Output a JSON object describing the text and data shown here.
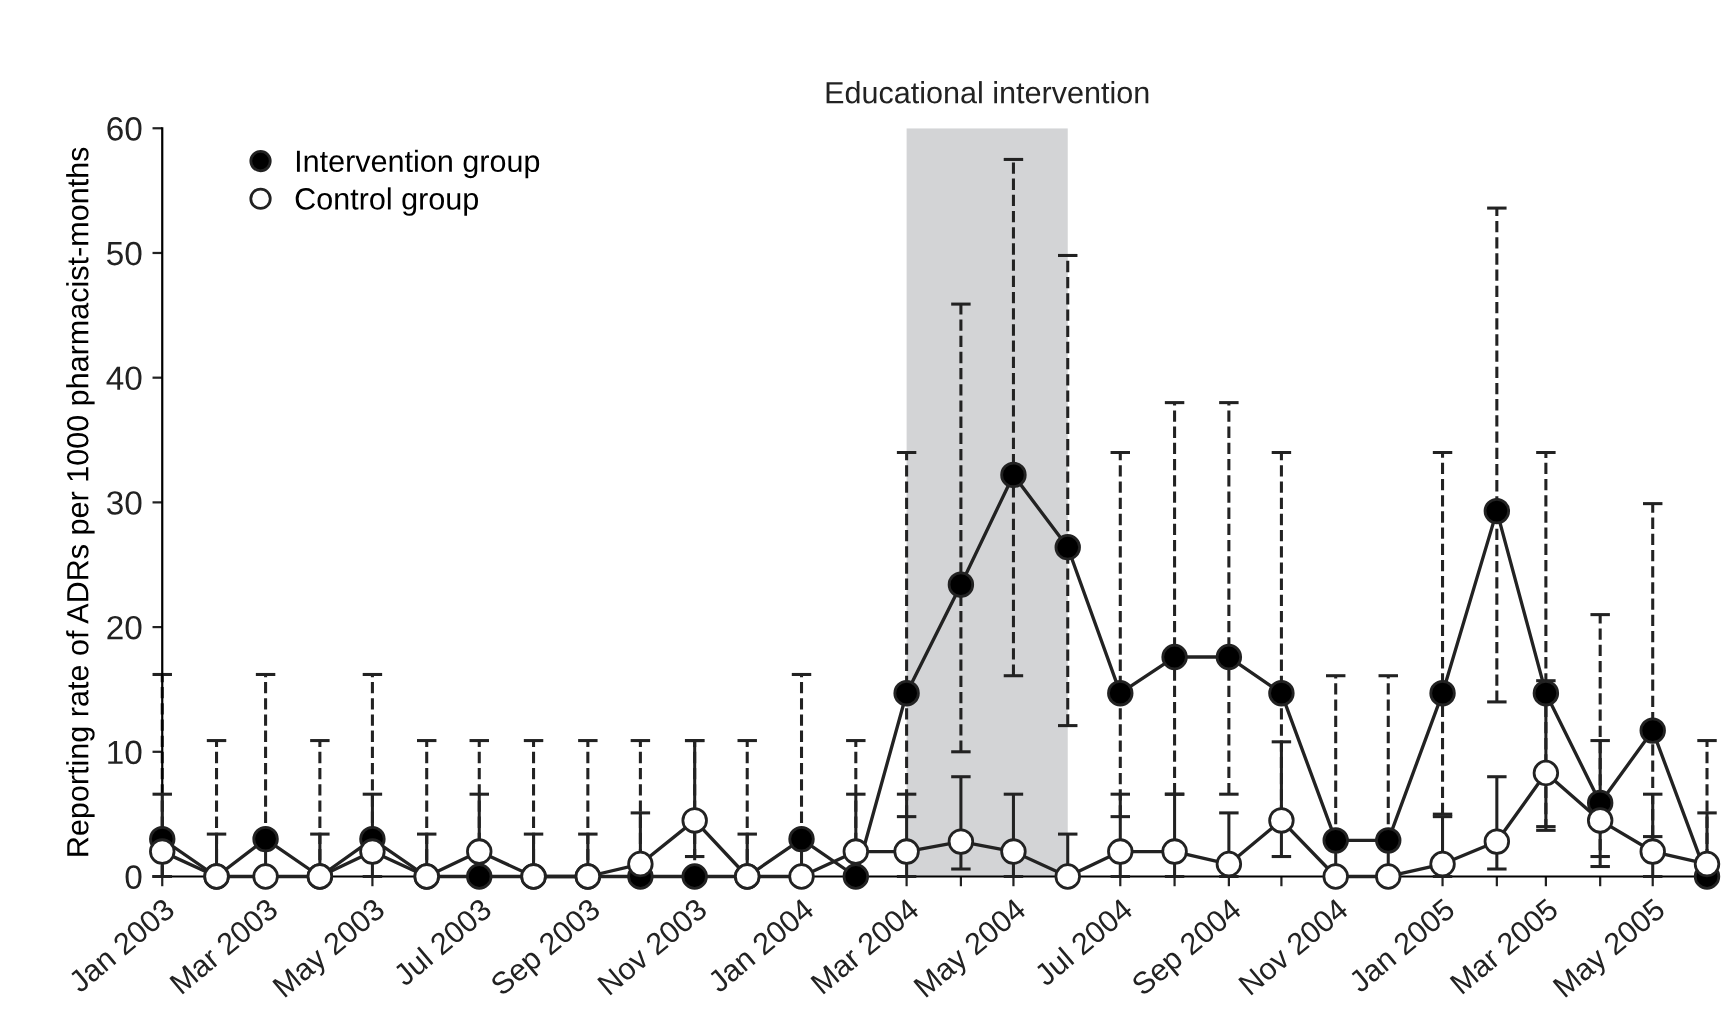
{
  "chart_data": {
    "type": "line",
    "ylabel": "Reporting rate of ADRs per 1000 pharmacist-months",
    "x": [
      "2003-01",
      "2003-02",
      "2003-03",
      "2003-04",
      "2003-05",
      "2003-06",
      "2003-07",
      "2003-08",
      "2003-09",
      "2003-10",
      "2003-11",
      "2003-12",
      "2004-01",
      "2004-02",
      "2004-03",
      "2004-04",
      "2004-05",
      "2004-06",
      "2004-07",
      "2004-08",
      "2004-09",
      "2004-10",
      "2004-11",
      "2004-12",
      "2005-01",
      "2005-02",
      "2005-03",
      "2005-04",
      "2005-05",
      "2005-06"
    ],
    "xlim": [
      "2003-01",
      "2005-06"
    ],
    "xticks": [
      {
        "value": "2003-01",
        "label": "Jan 2003"
      },
      {
        "value": "2003-02",
        "label": null
      },
      {
        "value": "2003-03",
        "label": "Mar 2003"
      },
      {
        "value": "2003-04",
        "label": null
      },
      {
        "value": "2003-05",
        "label": "May 2003"
      },
      {
        "value": "2003-06",
        "label": null
      },
      {
        "value": "2003-07",
        "label": "Jul 2003"
      },
      {
        "value": "2003-08",
        "label": null
      },
      {
        "value": "2003-09",
        "label": "Sep 2003"
      },
      {
        "value": "2003-10",
        "label": null
      },
      {
        "value": "2003-11",
        "label": "Nov 2003"
      },
      {
        "value": "2003-12",
        "label": null
      },
      {
        "value": "2004-01",
        "label": "Jan 2004"
      },
      {
        "value": "2004-02",
        "label": null
      },
      {
        "value": "2004-03",
        "label": "Mar 2004"
      },
      {
        "value": "2004-04",
        "label": null
      },
      {
        "value": "2004-05",
        "label": "May 2004"
      },
      {
        "value": "2004-06",
        "label": null
      },
      {
        "value": "2004-07",
        "label": "Jul 2004"
      },
      {
        "value": "2004-08",
        "label": null
      },
      {
        "value": "2004-09",
        "label": "Sep 2004"
      },
      {
        "value": "2004-10",
        "label": null
      },
      {
        "value": "2004-11",
        "label": "Nov 2004"
      },
      {
        "value": "2004-12",
        "label": null
      },
      {
        "value": "2005-01",
        "label": "Jan 2005"
      },
      {
        "value": "2005-02",
        "label": null
      },
      {
        "value": "2005-03",
        "label": "Mar 2005"
      },
      {
        "value": "2005-04",
        "label": null
      },
      {
        "value": "2005-05",
        "label": "May 2005"
      },
      {
        "value": "2005-06",
        "label": null
      }
    ],
    "series": [
      {
        "name": "Intervention group",
        "color": "#000000",
        "values": [
          3,
          0,
          3,
          0,
          3,
          0,
          0,
          0,
          0,
          0,
          0,
          0,
          3,
          0,
          14.7,
          23.4,
          32.2,
          26.4,
          14.7,
          17.6,
          17.6,
          14.7,
          2.9,
          2.9,
          14.7,
          29.3,
          14.7,
          5.9,
          11.7,
          0
        ],
        "errors": [
          [
            0,
            16.2
          ],
          [
            0,
            10.9
          ],
          [
            3,
            16.2
          ],
          [
            0,
            10.9
          ],
          [
            3,
            16.2
          ],
          [
            0,
            10.9
          ],
          [
            0,
            10.9
          ],
          [
            0,
            10.9
          ],
          [
            0,
            10.9
          ],
          [
            0,
            10.9
          ],
          [
            0,
            10.9
          ],
          [
            0,
            10.9
          ],
          [
            3,
            16.2
          ],
          [
            0,
            10.9
          ],
          [
            4.8,
            34
          ],
          [
            10,
            45.9
          ],
          [
            16.1,
            57.5
          ],
          [
            12.1,
            49.8
          ],
          [
            4.8,
            34
          ],
          [
            6.6,
            38
          ],
          [
            6.6,
            38
          ],
          [
            4.8,
            34
          ],
          [
            2.9,
            16.1
          ],
          [
            2.9,
            16.1
          ],
          [
            5,
            34
          ],
          [
            14,
            53.6
          ],
          [
            3.7,
            34
          ],
          [
            0.8,
            21
          ],
          [
            3.2,
            29.9
          ],
          [
            0,
            10.9
          ]
        ]
      },
      {
        "name": "Control group",
        "color": "#ffffff",
        "values": [
          2,
          0,
          0,
          0,
          2,
          0,
          2,
          0,
          0,
          1,
          4.5,
          0,
          0,
          2,
          2,
          2.8,
          2,
          0,
          2,
          2,
          1,
          4.5,
          0,
          0,
          1,
          2.8,
          8.3,
          4.5,
          2,
          1
        ],
        "errors": [
          [
            0,
            6.6
          ],
          [
            0,
            3.4
          ],
          [
            0,
            3.4
          ],
          [
            0,
            3.4
          ],
          [
            0,
            6.6
          ],
          [
            0,
            3.4
          ],
          [
            2,
            6.6
          ],
          [
            0,
            3.4
          ],
          [
            0,
            3.4
          ],
          [
            0,
            5.1
          ],
          [
            1.6,
            10.9
          ],
          [
            0,
            3.4
          ],
          [
            0,
            3.4
          ],
          [
            2,
            6.6
          ],
          [
            0,
            6.6
          ],
          [
            0.6,
            8
          ],
          [
            0,
            6.6
          ],
          [
            0,
            3.4
          ],
          [
            0,
            6.6
          ],
          [
            0,
            6.6
          ],
          [
            0,
            5.1
          ],
          [
            1.6,
            10.8
          ],
          [
            0,
            3.4
          ],
          [
            0,
            3.4
          ],
          [
            0,
            4.8
          ],
          [
            0.6,
            8
          ],
          [
            4,
            15.7
          ],
          [
            1.6,
            10.9
          ],
          [
            0,
            6.6
          ],
          [
            0,
            5.1
          ]
        ]
      }
    ],
    "bands": [
      {
        "axis": "x",
        "from": "2004-03",
        "to": "2004-06",
        "label": "Educational intervention",
        "color": "#d3d4d6"
      }
    ],
    "ylim": [
      0,
      60
    ],
    "yticks": [
      0,
      10,
      20,
      30,
      40,
      50,
      60
    ],
    "marker": "circle",
    "line_style": "solid",
    "legend": "top left",
    "grid": false
  }
}
